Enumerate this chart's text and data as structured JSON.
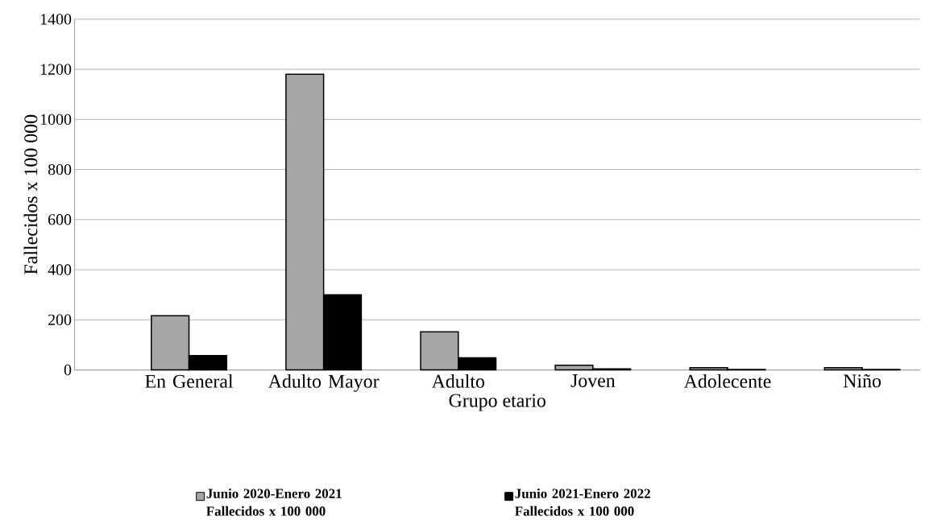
{
  "chart_data": {
    "type": "bar",
    "xlabel": "Grupo etario",
    "ylabel": "Fallecidos x 100 000",
    "categories": [
      "En General",
      "Adulto Mayor",
      "Adulto",
      "Joven",
      "Adolecente",
      "Niño"
    ],
    "series": [
      {
        "name": "Junio 2020-Enero 2021 Fallecidos x 100 000",
        "color": "#a6a6a6",
        "values": [
          216,
          1180,
          152,
          19,
          9,
          9
        ]
      },
      {
        "name": "Junio 2021-Enero 2022 Fallecidos x 100 000",
        "color": "#000000",
        "values": [
          57,
          300,
          48,
          4,
          2,
          2
        ]
      }
    ],
    "ylim": [
      0,
      1400
    ],
    "yticks": [
      0,
      200,
      400,
      600,
      800,
      1000,
      1200,
      1400
    ],
    "grid": "y",
    "legend": "bottom"
  }
}
